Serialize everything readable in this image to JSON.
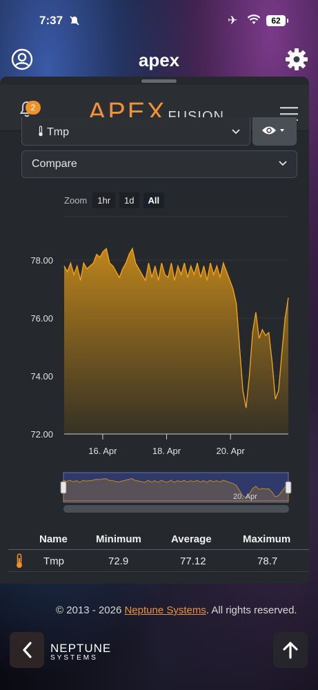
{
  "status_bar": {
    "time": "7:37",
    "battery": "62"
  },
  "app_header": {
    "title": "apex"
  },
  "panel": {
    "notifications_count": "2",
    "logo_primary": "APEX",
    "logo_secondary": "FUSION",
    "probe_select": "Tmp",
    "compare_select": "Compare",
    "zoom": {
      "label": "Zoom",
      "options": [
        "1hr",
        "1d",
        "All"
      ],
      "selected": "All"
    }
  },
  "chart_data": {
    "type": "area",
    "series": [
      {
        "values": [
          77.8,
          77.6,
          77.9,
          77.5,
          77.8,
          77.3,
          77.9,
          77.7,
          77.8,
          77.9,
          78.2,
          78.1,
          78.3,
          78.4,
          77.9,
          77.8,
          77.6,
          77.4,
          77.7,
          77.9,
          78.2,
          78.4,
          77.9,
          77.7,
          77.5,
          77.3,
          77.9,
          77.4,
          77.8,
          77.3,
          77.9,
          77.5,
          77.4,
          77.9,
          77.3,
          77.8,
          77.5,
          77.9,
          77.4,
          77.8,
          77.5,
          77.9,
          77.4,
          77.8,
          77.3,
          77.9,
          77.5,
          77.8,
          77.4,
          77.9,
          77.6,
          77.3,
          77.0,
          76.5,
          75.0,
          73.5,
          72.9,
          74.0,
          75.5,
          76.2,
          75.3,
          75.6,
          75.4,
          75.5,
          74.5,
          73.2,
          73.5,
          74.8,
          76.0,
          76.7
        ]
      }
    ],
    "x_ticks": [
      "16. Apr",
      "18. Apr",
      "20. Apr"
    ],
    "y_ticks": [
      "72.00",
      "74.00",
      "76.00",
      "78.00"
    ],
    "ylim": [
      72,
      79.5
    ],
    "navigator_label": "20. Apr"
  },
  "table": {
    "headers": {
      "name": "Name",
      "minimum": "Minimum",
      "average": "Average",
      "maximum": "Maximum"
    },
    "row": {
      "name": "Tmp",
      "minimum": "72.9",
      "average": "77.12",
      "maximum": "78.7"
    }
  },
  "footer": {
    "copyright": "© 2013 - 2026 ",
    "link": "Neptune Systems",
    "rights": ". All rights reserved."
  },
  "bottom": {
    "brand_line1": "NEPTUNE",
    "brand_line2": "SYSTEMS"
  },
  "colors": {
    "accent": "#f0923a",
    "panel": "#25282c",
    "series": "#f0a21a"
  }
}
